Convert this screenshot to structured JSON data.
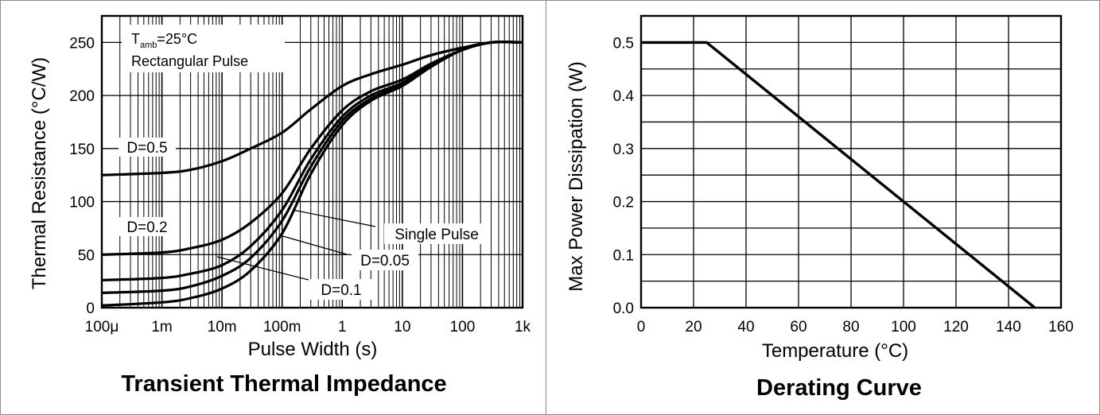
{
  "chart_data": [
    {
      "type": "line",
      "title": "Transient Thermal Impedance",
      "xlabel": "Pulse Width (s)",
      "ylabel": "Thermal Resistance (°C/W)",
      "x_scale": "log",
      "xlim": [
        0.0001,
        1000
      ],
      "ylim": [
        0,
        275
      ],
      "grid": true,
      "xticks": [
        {
          "value": 0.0001,
          "label": "100μ"
        },
        {
          "value": 0.001,
          "label": "1m"
        },
        {
          "value": 0.01,
          "label": "10m"
        },
        {
          "value": 0.1,
          "label": "100m"
        },
        {
          "value": 1,
          "label": "1"
        },
        {
          "value": 10,
          "label": "10"
        },
        {
          "value": 100,
          "label": "100"
        },
        {
          "value": 1000,
          "label": "1k"
        }
      ],
      "yticks": [
        {
          "value": 0,
          "label": "0"
        },
        {
          "value": 50,
          "label": "50"
        },
        {
          "value": 100,
          "label": "100"
        },
        {
          "value": 150,
          "label": "150"
        },
        {
          "value": 200,
          "label": "200"
        },
        {
          "value": 250,
          "label": "250"
        }
      ],
      "annotation": {
        "t_main": "T",
        "t_sub": "amb",
        "t_rest": "=25°C",
        "line2": "Rectangular Pulse"
      },
      "series": [
        {
          "name": "D=0.5",
          "points": [
            [
              0.0001,
              125
            ],
            [
              0.001,
              127
            ],
            [
              0.003,
              130
            ],
            [
              0.01,
              138
            ],
            [
              0.03,
              150
            ],
            [
              0.1,
              165
            ],
            [
              0.3,
              187
            ],
            [
              1,
              209
            ],
            [
              3,
              220
            ],
            [
              10,
              229
            ],
            [
              30,
              238
            ],
            [
              100,
              245
            ],
            [
              300,
              250
            ],
            [
              1000,
              250
            ]
          ]
        },
        {
          "name": "D=0.2",
          "points": [
            [
              0.0001,
              50
            ],
            [
              0.001,
              52
            ],
            [
              0.003,
              56
            ],
            [
              0.01,
              64
            ],
            [
              0.03,
              80
            ],
            [
              0.1,
              108
            ],
            [
              0.3,
              150
            ],
            [
              1,
              186
            ],
            [
              3,
              204
            ],
            [
              10,
              215
            ],
            [
              30,
              230
            ],
            [
              100,
              243
            ],
            [
              300,
              250
            ],
            [
              1000,
              250
            ]
          ]
        },
        {
          "name": "D=0.1",
          "points": [
            [
              0.0001,
              26
            ],
            [
              0.001,
              28
            ],
            [
              0.003,
              32
            ],
            [
              0.01,
              40
            ],
            [
              0.03,
              58
            ],
            [
              0.1,
              92
            ],
            [
              0.3,
              140
            ],
            [
              1,
              180
            ],
            [
              3,
              200
            ],
            [
              10,
              212
            ],
            [
              30,
              229
            ],
            [
              100,
              243
            ],
            [
              300,
              250
            ],
            [
              1000,
              250
            ]
          ]
        },
        {
          "name": "D=0.05",
          "points": [
            [
              0.0001,
              14
            ],
            [
              0.001,
              16
            ],
            [
              0.003,
              20
            ],
            [
              0.01,
              30
            ],
            [
              0.03,
              47
            ],
            [
              0.1,
              82
            ],
            [
              0.3,
              133
            ],
            [
              1,
              176
            ],
            [
              3,
              197
            ],
            [
              10,
              210
            ],
            [
              30,
              228
            ],
            [
              100,
              243
            ],
            [
              300,
              250
            ],
            [
              1000,
              250
            ]
          ]
        },
        {
          "name": "Single Pulse",
          "points": [
            [
              0.0001,
              2
            ],
            [
              0.001,
              5
            ],
            [
              0.003,
              9
            ],
            [
              0.01,
              18
            ],
            [
              0.03,
              35
            ],
            [
              0.1,
              70
            ],
            [
              0.3,
              126
            ],
            [
              1,
              172
            ],
            [
              3,
              195
            ],
            [
              10,
              209
            ],
            [
              30,
              227
            ],
            [
              100,
              243
            ],
            [
              300,
              250
            ],
            [
              1000,
              250
            ]
          ]
        }
      ],
      "labels": [
        {
          "text": "D=0.5",
          "for": "D=0.5"
        },
        {
          "text": "D=0.2",
          "for": "D=0.2"
        },
        {
          "text": "Single Pulse",
          "for": "Single Pulse"
        },
        {
          "text": "D=0.05",
          "for": "D=0.05"
        },
        {
          "text": "D=0.1",
          "for": "D=0.1"
        }
      ]
    },
    {
      "type": "line",
      "title": "Derating Curve",
      "xlabel": "Temperature (°C)",
      "ylabel": "Max Power Dissipation (W)",
      "xlim": [
        0,
        160
      ],
      "ylim": [
        0,
        0.55
      ],
      "grid": true,
      "xticks": [
        {
          "value": 0,
          "label": "0"
        },
        {
          "value": 20,
          "label": "20"
        },
        {
          "value": 40,
          "label": "40"
        },
        {
          "value": 60,
          "label": "60"
        },
        {
          "value": 80,
          "label": "80"
        },
        {
          "value": 100,
          "label": "100"
        },
        {
          "value": 120,
          "label": "120"
        },
        {
          "value": 140,
          "label": "140"
        },
        {
          "value": 160,
          "label": "160"
        }
      ],
      "yticks": [
        {
          "value": 0,
          "label": "0.0"
        },
        {
          "value": 0.1,
          "label": "0.1"
        },
        {
          "value": 0.2,
          "label": "0.2"
        },
        {
          "value": 0.3,
          "label": "0.3"
        },
        {
          "value": 0.4,
          "label": "0.4"
        },
        {
          "value": 0.5,
          "label": "0.5"
        }
      ],
      "series": [
        {
          "points": [
            [
              0,
              0.5
            ],
            [
              25,
              0.5
            ],
            [
              150,
              0
            ]
          ]
        }
      ]
    }
  ]
}
